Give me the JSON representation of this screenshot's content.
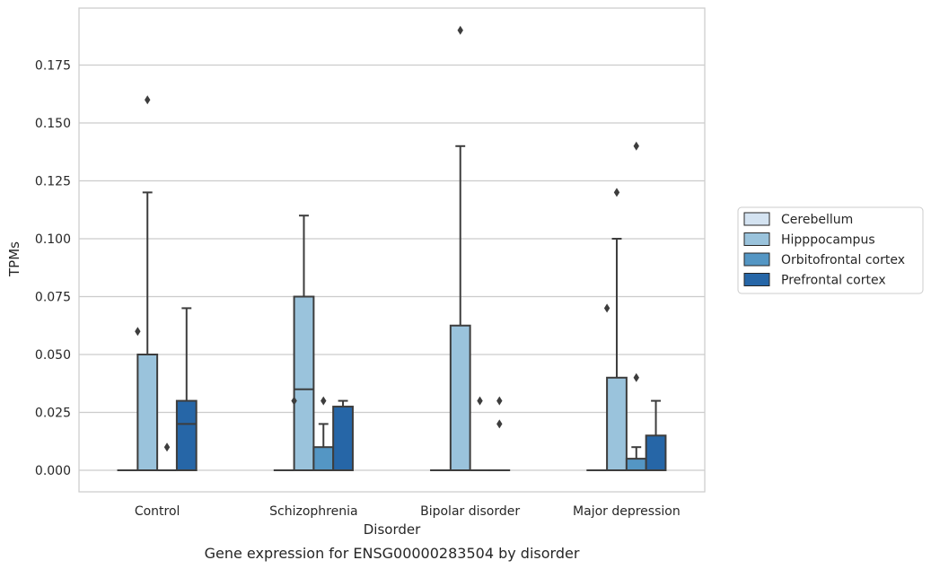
{
  "chart_data": {
    "type": "box",
    "title": "",
    "caption": "Gene expression for ENSG00000283504 by disorder",
    "xlabel": "Disorder",
    "ylabel": "TPMs",
    "ylim": [
      -0.0095,
      0.199
    ],
    "yticks": [
      "0.000",
      "0.025",
      "0.050",
      "0.075",
      "0.100",
      "0.125",
      "0.150",
      "0.175"
    ],
    "grid": "horizontal",
    "legend_position": "right",
    "categories": [
      "Control",
      "Schizophrenia",
      "Bipolar disorder",
      "Major depression"
    ],
    "series": [
      {
        "name": "Cerebellum",
        "color": "#d4e3f1",
        "boxes": [
          {
            "q1": 0,
            "median": 0,
            "q3": 0,
            "whislo": 0,
            "whishi": 0,
            "fliers": []
          },
          {
            "q1": 0,
            "median": 0,
            "q3": 0,
            "whislo": 0,
            "whishi": 0,
            "fliers": []
          },
          {
            "q1": 0,
            "median": 0,
            "q3": 0,
            "whislo": 0,
            "whishi": 0,
            "fliers": []
          },
          {
            "q1": 0,
            "median": 0,
            "q3": 0,
            "whislo": 0,
            "whishi": 0,
            "fliers": []
          }
        ]
      },
      {
        "name": "Hipppocampus",
        "color": "#9ac3dc",
        "boxes": [
          {
            "q1": 0,
            "median": 0,
            "q3": 0.05,
            "whislo": 0,
            "whishi": 0.12,
            "fliers": [
              0.16
            ]
          },
          {
            "q1": 0,
            "median": 0.035,
            "q3": 0.075,
            "whislo": 0,
            "whishi": 0.11,
            "fliers": []
          },
          {
            "q1": 0,
            "median": 0,
            "q3": 0.0625,
            "whislo": 0,
            "whishi": 0.14,
            "fliers": [
              0.19
            ]
          },
          {
            "q1": 0,
            "median": 0,
            "q3": 0.04,
            "whislo": 0,
            "whishi": 0.1,
            "fliers": [
              0.12
            ]
          }
        ]
      },
      {
        "name": "Orbitofrontal cortex",
        "color": "#5496c4",
        "boxes": [
          {
            "q1": 0,
            "median": 0,
            "q3": 0,
            "whislo": 0,
            "whishi": 0,
            "fliers": [
              0.01
            ]
          },
          {
            "q1": 0,
            "median": 0,
            "q3": 0.01,
            "whislo": 0,
            "whishi": 0.02,
            "fliers": [
              0.03
            ]
          },
          {
            "q1": 0,
            "median": 0,
            "q3": 0,
            "whislo": 0,
            "whishi": 0,
            "fliers": [
              0.03
            ]
          },
          {
            "q1": 0,
            "median": 0,
            "q3": 0.005,
            "whislo": 0,
            "whishi": 0.01,
            "fliers": [
              0.04
            ]
          }
        ]
      },
      {
        "name": "Prefrontal cortex",
        "color": "#2666a7",
        "boxes": [
          {
            "q1": 0,
            "median": 0.02,
            "q3": 0.03,
            "whislo": 0,
            "whishi": 0.07,
            "fliers": []
          },
          {
            "q1": 0,
            "median": 0,
            "q3": 0.0275,
            "whislo": 0,
            "whishi": 0.03,
            "fliers": []
          },
          {
            "q1": 0,
            "median": 0,
            "q3": 0,
            "whislo": 0,
            "whishi": 0,
            "fliers": [
              0.03,
              0.02
            ]
          },
          {
            "q1": 0,
            "median": 0,
            "q3": 0.015,
            "whislo": 0,
            "whishi": 0.03,
            "fliers": []
          }
        ]
      }
    ],
    "outliers_extra": [
      {
        "category": 0,
        "x_offset": -0.5,
        "value": 0.06
      },
      {
        "category": 1,
        "x_offset": -0.5,
        "value": 0.03
      },
      {
        "category": 3,
        "x_offset": -0.5,
        "value": 0.07
      },
      {
        "category": 3,
        "x_offset": 0,
        "value": 0.14
      }
    ]
  }
}
